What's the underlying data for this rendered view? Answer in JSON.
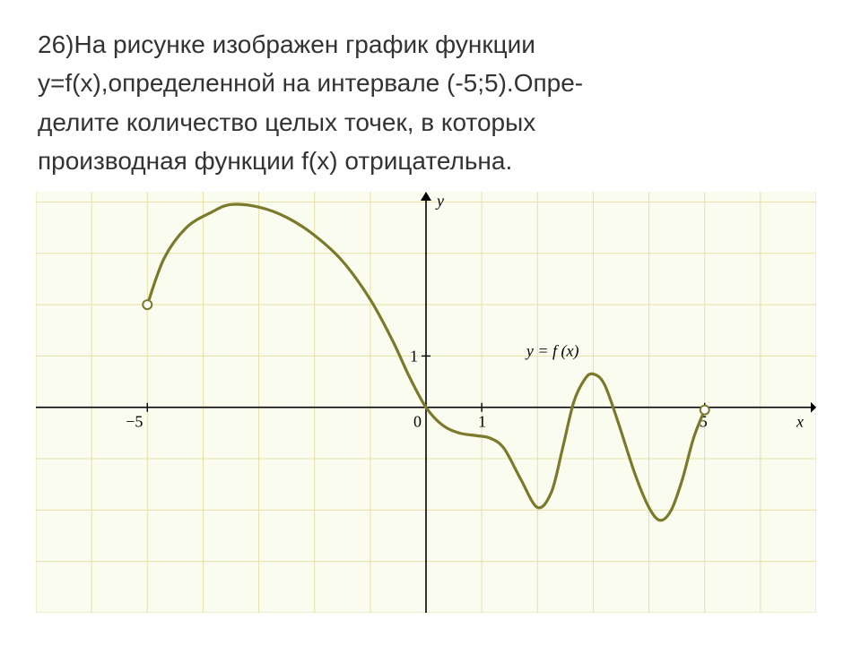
{
  "problem": {
    "number": "26)",
    "line1": "На рисунке изображен график функции",
    "line2": "y=f(x),определенной на интервале (-5;5).Опре-",
    "line3": "делите количество целых точек, в которых",
    "line4": "производная функции f(x) отрицательна."
  },
  "chart": {
    "type": "line",
    "background_color": "#fbfcf0",
    "grid_color": "#e6dfa6",
    "axis_color": "#000000",
    "curve_color": "#7a7a2a",
    "curve_width": 3.2,
    "text_color": "#000000",
    "xlim": [
      -7,
      7
    ],
    "ylim": [
      -4,
      4.2
    ],
    "xtick_step": 1,
    "ytick_step": 1,
    "tick_labels": {
      "origin": "0",
      "one_x": "1",
      "one_y": "1",
      "neg5": "−5",
      "pos5": "5",
      "x_axis": "x",
      "y_axis": "y",
      "fn": "y = f (x)"
    },
    "label_fontsize": 18,
    "fn_label_fontsize": 18,
    "endpoint_fill": "#ffffff",
    "endpoint_radius": 5,
    "curve_points": [
      [
        -5.0,
        2.0
      ],
      [
        -4.7,
        2.9
      ],
      [
        -4.3,
        3.5
      ],
      [
        -3.85,
        3.8
      ],
      [
        -3.5,
        3.95
      ],
      [
        -3.0,
        3.9
      ],
      [
        -2.5,
        3.7
      ],
      [
        -2.0,
        3.35
      ],
      [
        -1.5,
        2.85
      ],
      [
        -1.0,
        2.1
      ],
      [
        -0.6,
        1.3
      ],
      [
        -0.3,
        0.6
      ],
      [
        0.0,
        0.0
      ],
      [
        0.3,
        -0.35
      ],
      [
        0.6,
        -0.5
      ],
      [
        0.9,
        -0.55
      ],
      [
        1.15,
        -0.6
      ],
      [
        1.4,
        -0.8
      ],
      [
        1.7,
        -1.4
      ],
      [
        2.0,
        -1.95
      ],
      [
        2.25,
        -1.65
      ],
      [
        2.45,
        -0.8
      ],
      [
        2.65,
        0.1
      ],
      [
        2.85,
        0.55
      ],
      [
        3.0,
        0.65
      ],
      [
        3.2,
        0.45
      ],
      [
        3.45,
        -0.3
      ],
      [
        3.75,
        -1.3
      ],
      [
        4.0,
        -1.95
      ],
      [
        4.2,
        -2.2
      ],
      [
        4.4,
        -2.0
      ],
      [
        4.6,
        -1.4
      ],
      [
        4.8,
        -0.6
      ],
      [
        5.0,
        -0.05
      ]
    ]
  }
}
